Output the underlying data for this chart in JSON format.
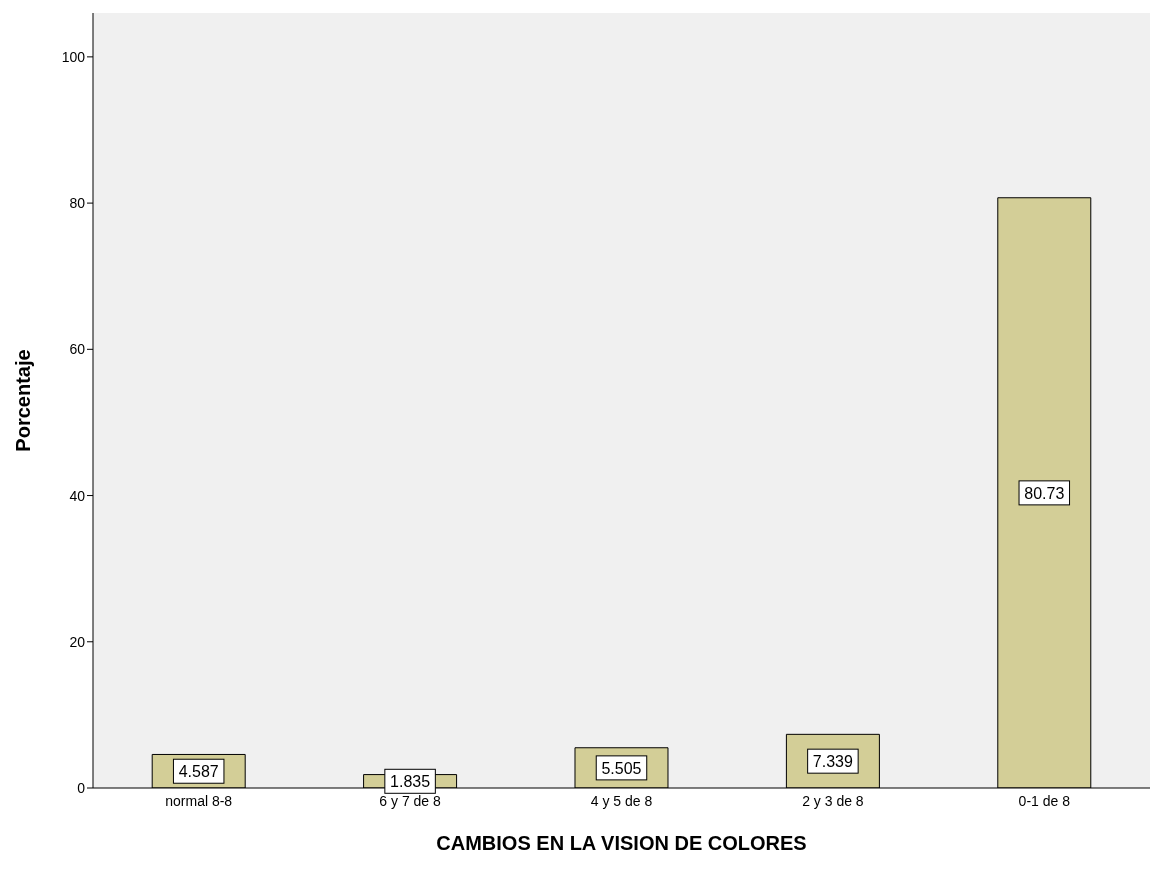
{
  "chart_data": {
    "type": "bar",
    "xlabel": "CAMBIOS EN LA VISION DE COLORES",
    "ylabel": "Porcentaje",
    "categories": [
      "normal 8-8",
      "6 y 7 de 8",
      "4 y 5 de 8",
      "2 y 3 de 8",
      "0-1 de 8"
    ],
    "values": [
      4.587,
      1.835,
      5.505,
      7.339,
      80.73
    ],
    "color": "#d3ce97",
    "ylim": [
      0,
      106
    ],
    "yticks": [
      0,
      20,
      40,
      60,
      80,
      100
    ],
    "grid": false,
    "data_labels": true
  }
}
